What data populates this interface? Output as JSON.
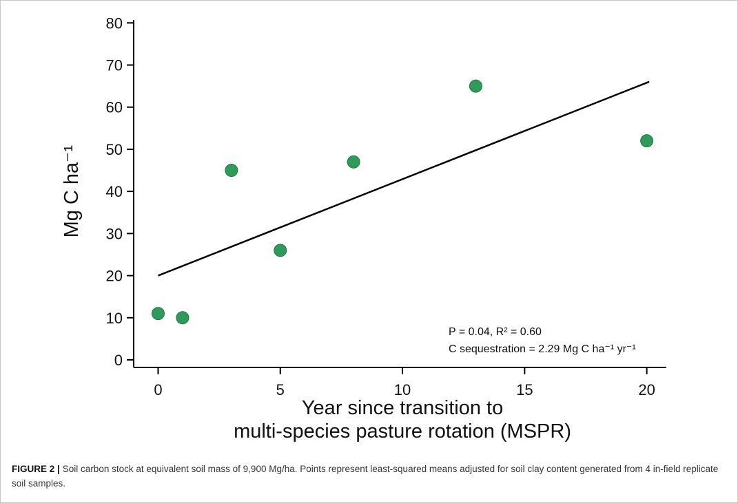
{
  "figure_caption": {
    "label_bold": "FIGURE 2 |",
    "text": "Soil carbon stock at equivalent soil mass of 9,900 Mg/ha. Points represent least-squared means adjusted for soil clay content generated from 4 in-field replicate soil samples."
  },
  "chart_data": {
    "type": "scatter",
    "title": "",
    "xlabel_lines": [
      "Year since transition to",
      "multi-species pasture rotation (MSPR)"
    ],
    "ylabel": "Mg C ha⁻¹",
    "x_ticks": [
      0,
      5,
      10,
      15,
      20
    ],
    "y_ticks": [
      0,
      10,
      20,
      30,
      40,
      50,
      60,
      70,
      80
    ],
    "xlim": [
      -1.0,
      20.8
    ],
    "ylim": [
      -1.8,
      80.7
    ],
    "grid": false,
    "legend": null,
    "points": [
      {
        "x": 0,
        "y": 11
      },
      {
        "x": 1,
        "y": 10
      },
      {
        "x": 3,
        "y": 45
      },
      {
        "x": 5,
        "y": 26
      },
      {
        "x": 8,
        "y": 47
      },
      {
        "x": 13,
        "y": 65
      },
      {
        "x": 20,
        "y": 52
      }
    ],
    "point_color": "#2f9a59",
    "point_edge_color": "#1e7a41",
    "regression": {
      "slope": 2.29,
      "intercept": 20.0,
      "x_start": 0.0,
      "x_end": 20.1,
      "color": "#000000"
    },
    "annotations": [
      "P = 0.04, R² = 0.60",
      "C sequestration = 2.29 Mg C ha⁻¹ yr⁻¹"
    ]
  }
}
